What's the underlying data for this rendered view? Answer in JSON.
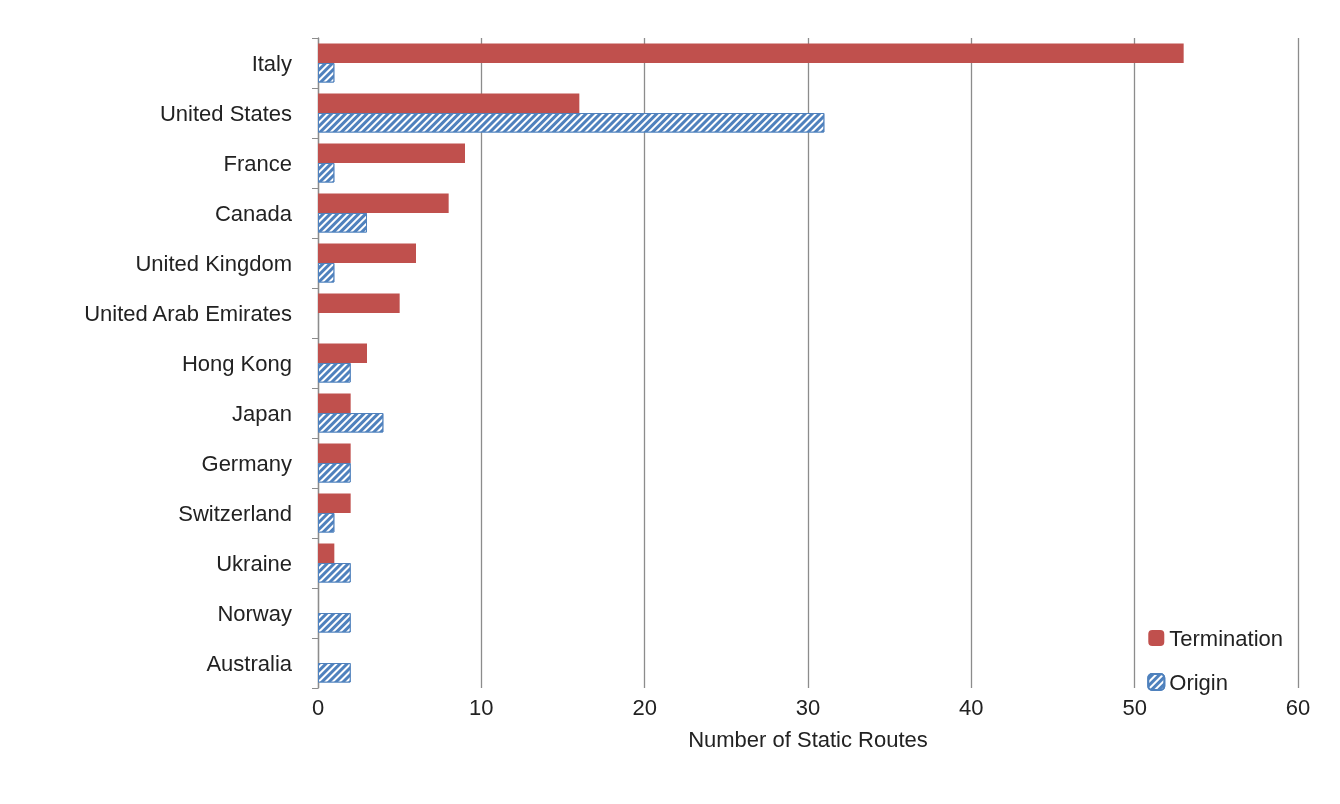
{
  "chart_data": {
    "type": "bar",
    "orientation": "horizontal",
    "xlabel": "Number of Static Routes",
    "categories": [
      "Italy",
      "United States",
      "France",
      "Canada",
      "United Kingdom",
      "United Arab Emirates",
      "Hong Kong",
      "Japan",
      "Germany",
      "Switzerland",
      "Ukraine",
      "Norway",
      "Australia"
    ],
    "series": [
      {
        "name": "Termination",
        "color": "#c0504d",
        "values": [
          53,
          16,
          9,
          8,
          6,
          5,
          3,
          2,
          2,
          2,
          1,
          null,
          null
        ]
      },
      {
        "name": "Origin",
        "color": "#4f81bd",
        "values": [
          1,
          31,
          1,
          3,
          1,
          null,
          2,
          4,
          2,
          1,
          2,
          2,
          2
        ]
      }
    ],
    "xlim": [
      0,
      60
    ],
    "xticks": [
      0,
      10,
      20,
      30,
      40,
      50,
      60
    ],
    "grid": "x",
    "legend": "bottom right"
  }
}
